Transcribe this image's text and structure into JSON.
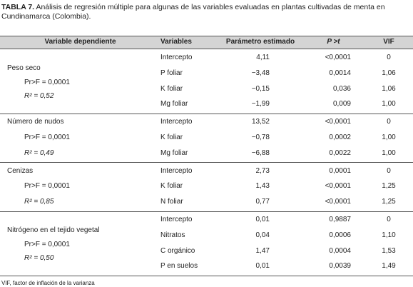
{
  "title": {
    "label": "TABLA 7.",
    "text": "Análisis de regresión múltiple para algunas de las variables evaluadas en plantas cultivadas de menta en Cundinamarca (Colombia)."
  },
  "header": [
    "Variable dependiente",
    "Variables",
    "Parámetro estimado",
    "P >t",
    "VIF"
  ],
  "groups": [
    {
      "name": "Peso seco",
      "pr": "Pr>F = 0,0001",
      "r2": "R² = 0,52",
      "rows": [
        [
          "Intercepto",
          "4,11",
          "<0,0001",
          "0"
        ],
        [
          "P foliar",
          "−3,48",
          "0,0014",
          "1,06"
        ],
        [
          "K foliar",
          "−0,15",
          "0,036",
          "1,06"
        ],
        [
          "Mg foliar",
          "−1,99",
          "0,009",
          "1,00"
        ]
      ]
    },
    {
      "name": "Número de nudos",
      "pr": "Pr>F = 0,0001",
      "r2": "R² = 0,49",
      "rows": [
        [
          "Intercepto",
          "13,52",
          "<0,0001",
          "0"
        ],
        [
          "K foliar",
          "−0,78",
          "0,0002",
          "1,00"
        ],
        [
          "Mg foliar",
          "−6,88",
          "0,0022",
          "1,00"
        ]
      ]
    },
    {
      "name": "Cenizas",
      "pr": "Pr>F = 0,0001",
      "r2": "R² = 0,85",
      "rows": [
        [
          "Intercepto",
          "2,73",
          "0,0001",
          "0"
        ],
        [
          "K foliar",
          "1,43",
          "<0,0001",
          "1,25"
        ],
        [
          "N foliar",
          "0,77",
          "<0,0001",
          "1,25"
        ]
      ]
    },
    {
      "name": "Nitrógeno en el tejido vegetal",
      "pr": "Pr>F = 0,0001",
      "r2": "R² = 0,50",
      "rows": [
        [
          "Intercepto",
          "0,01",
          "0,9887",
          "0"
        ],
        [
          "Nitratos",
          "0,04",
          "0,0006",
          "1,10"
        ],
        [
          "C orgánico",
          "1,47",
          "0,0004",
          "1,53"
        ],
        [
          "P en suelos",
          "0,01",
          "0,0039",
          "1,49"
        ]
      ]
    }
  ],
  "footnote": "VIF, factor de inflación de la varianza"
}
